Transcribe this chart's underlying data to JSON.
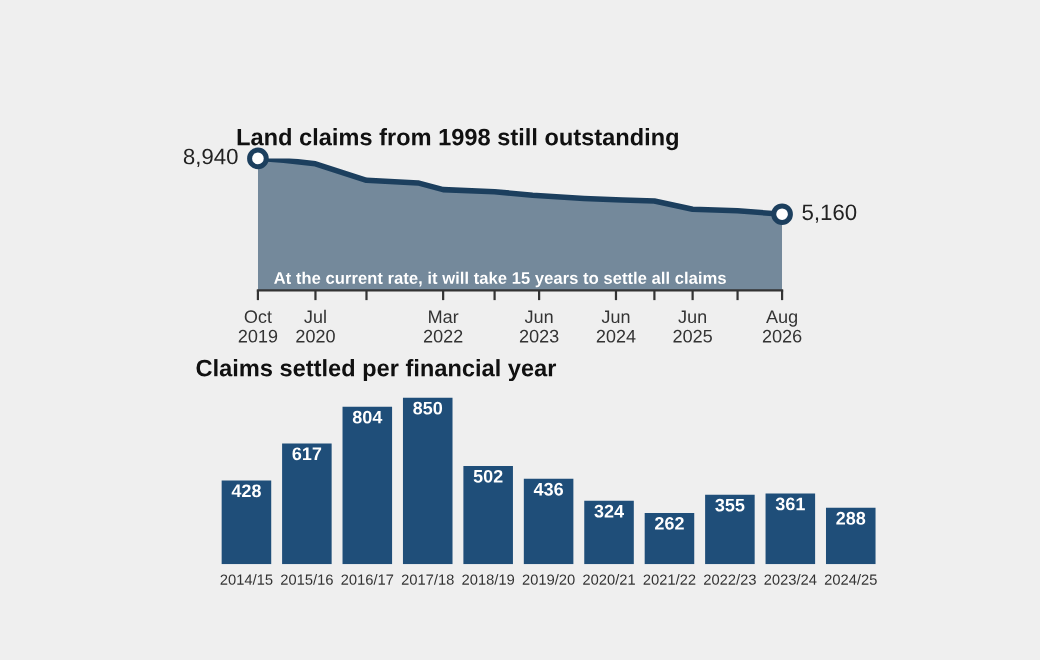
{
  "chart_data": [
    {
      "type": "area",
      "title": "Land claims from 1998 still outstanding",
      "x": [
        "2019-10",
        "2020-02",
        "2020-07",
        "2021-03",
        "2021-11",
        "2022-03",
        "2022-11",
        "2023-05",
        "2024-01",
        "2024-07",
        "2024-12",
        "2025-06",
        "2026-01",
        "2026-08"
      ],
      "series": [
        {
          "color": "#1c3f5e",
          "values": [
            8940,
            8820,
            8575,
            7455,
            7280,
            6825,
            6685,
            6440,
            6230,
            6125,
            6055,
            5495,
            5390,
            5160
          ],
          "value_labels": [
            "8,940",
            null,
            null,
            null,
            null,
            null,
            null,
            null,
            null,
            null,
            null,
            null,
            null,
            "5,160"
          ]
        }
      ],
      "tick_labels": "x",
      "xlim": [
        "2019-10",
        "2026-08"
      ],
      "xticks": [
        {
          "value": "2019-10",
          "label": "Oct\n2019"
        },
        {
          "value": "2020-07",
          "label": "Jul\n2020"
        },
        {
          "value": "2021-03",
          "label": null
        },
        {
          "value": "2022-03",
          "label": "Mar\n2022"
        },
        {
          "value": "2022-11",
          "label": null
        },
        {
          "value": "2023-06",
          "label": "Jun\n2023"
        },
        {
          "value": "2024-06",
          "label": "Jun\n2024"
        },
        {
          "value": "2024-12",
          "label": null
        },
        {
          "value": "2025-06",
          "label": "Jun\n2025"
        },
        {
          "value": "2026-01",
          "label": null
        },
        {
          "value": "2026-08",
          "label": "Aug\n2026"
        }
      ],
      "annotations": [
        "At the current rate, it will take 15 years to settle all claims"
      ],
      "grid": false,
      "legend": false
    },
    {
      "type": "bar",
      "title": "Claims settled per financial year",
      "categories": [
        "2014/15",
        "2015/16",
        "2016/17",
        "2017/18",
        "2018/19",
        "2019/20",
        "2020/21",
        "2021/22",
        "2022/23",
        "2023/24",
        "2024/25"
      ],
      "values": [
        428,
        617,
        804,
        850,
        502,
        436,
        324,
        262,
        355,
        361,
        288
      ],
      "color": "#1f4e79",
      "data_labels": true,
      "tick_labels": "x",
      "grid": false,
      "legend": false
    }
  ]
}
